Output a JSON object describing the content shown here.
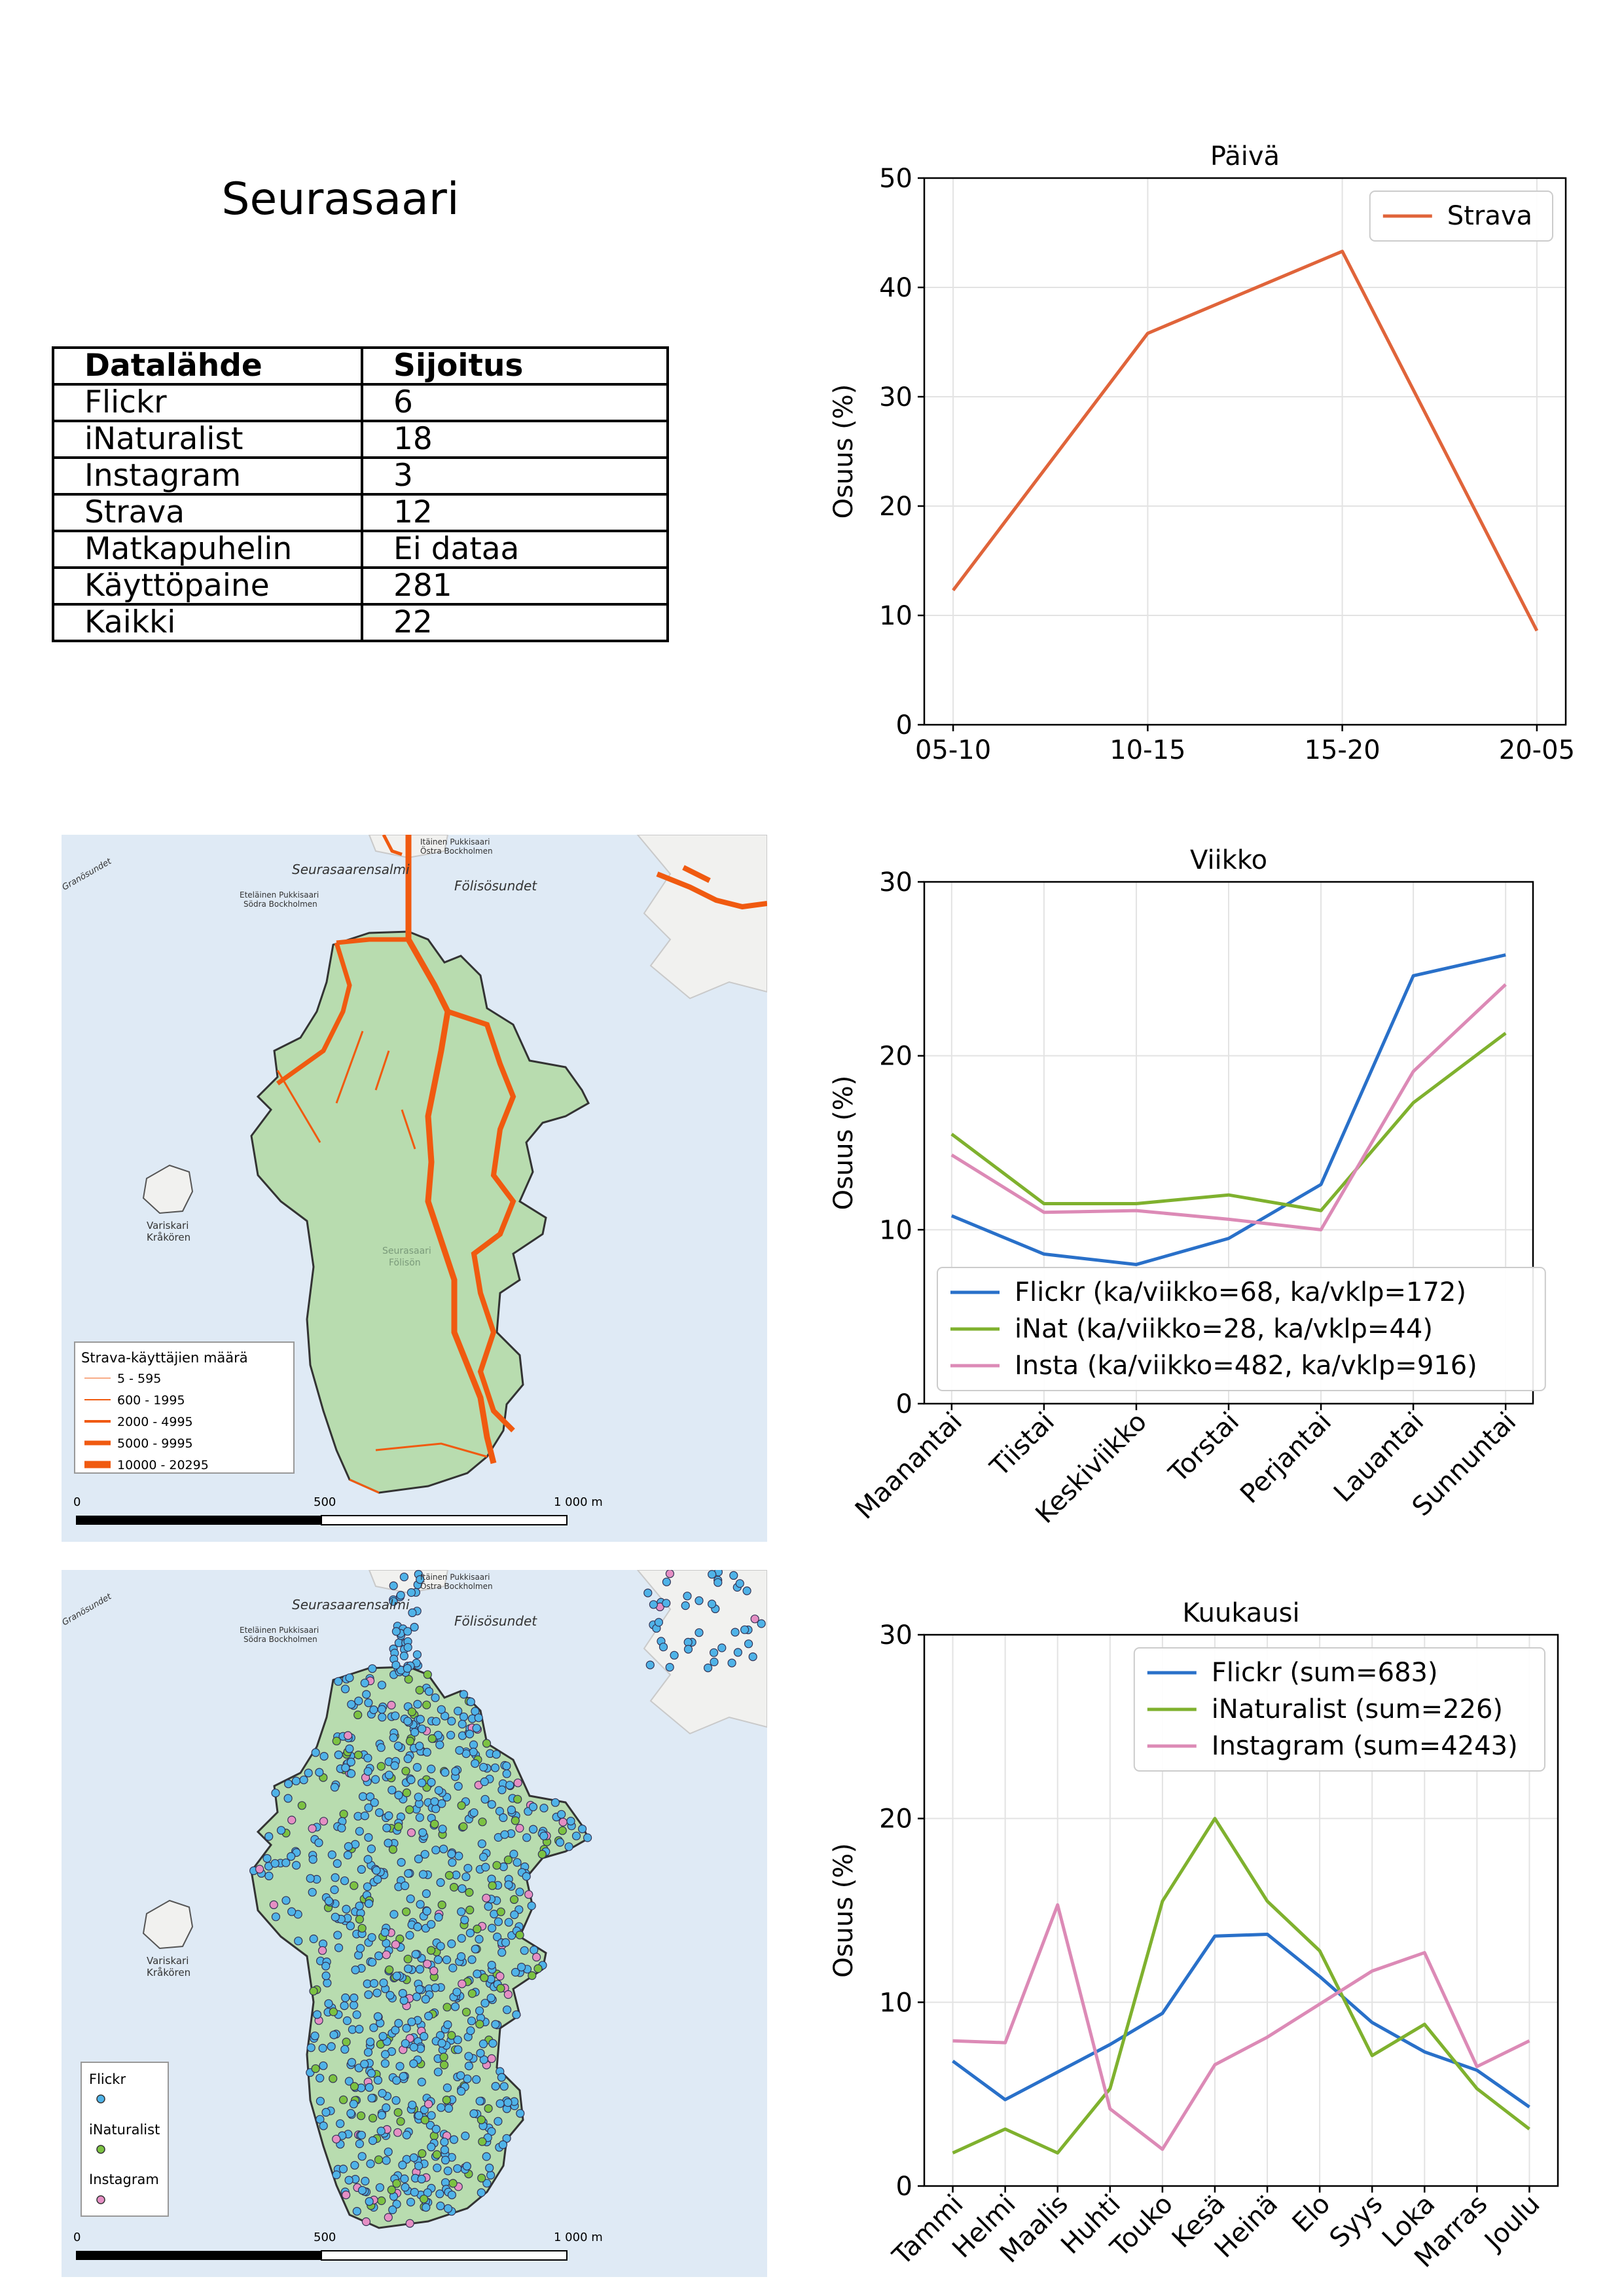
{
  "page_title": "Seurasaari",
  "ranking_table": {
    "headers": [
      "Datalähde",
      "Sijoitus"
    ],
    "rows": [
      [
        "Flickr",
        "6"
      ],
      [
        "iNaturalist",
        "18"
      ],
      [
        "Instagram",
        "3"
      ],
      [
        "Strava",
        "12"
      ],
      [
        "Matkapuhelin",
        "Ei dataa"
      ],
      [
        "Käyttöpaine",
        "281"
      ],
      [
        "Kaikki",
        "22"
      ]
    ]
  },
  "maps": {
    "strava": {
      "legend_title": "Strava-käyttäjien määrä",
      "legend_items": [
        "5 - 595",
        "600 - 1995",
        "2000 - 4995",
        "5000 - 9995",
        "10000 - 20295"
      ],
      "route_color": "#f05a10",
      "scale_labels": [
        "0",
        "500",
        "1 000 m"
      ]
    },
    "points": {
      "legend_items": [
        "Flickr",
        "iNaturalist",
        "Instagram"
      ],
      "colors": [
        "#4fb3e8",
        "#7cc242",
        "#e58fc4"
      ],
      "scale_labels": [
        "0",
        "500",
        "1 000 m"
      ]
    },
    "place_labels": [
      "Seurasaarensalmi",
      "Fölisösundet",
      "Itäinen Pukkisaari",
      "Östra Bockholmen",
      "Eteläinen Pukkisaari",
      "Södra Bockholmen",
      "Variskari",
      "Kråkören",
      "Granösundet",
      "Seurasaari",
      "Fölisön"
    ]
  },
  "chart_data": [
    {
      "type": "line",
      "title": "Päivä",
      "ylabel": "Osuus (%)",
      "xlabel": "",
      "categories": [
        "05-10",
        "10-15",
        "15-20",
        "20-05"
      ],
      "ylim": [
        0,
        50
      ],
      "yticks": [
        0,
        10,
        20,
        30,
        40,
        50
      ],
      "grid": true,
      "legend": "top-right",
      "series": [
        {
          "name": "Strava",
          "color": "#e0643a",
          "values": [
            12.3,
            35.8,
            43.3,
            8.6
          ]
        }
      ]
    },
    {
      "type": "line",
      "title": "Viikko",
      "ylabel": "Osuus (%)",
      "xlabel": "",
      "categories": [
        "Maanantai",
        "Tiistai",
        "Keskiviikko",
        "Torstai",
        "Perjantai",
        "Lauantai",
        "Sunnuntai"
      ],
      "ylim": [
        0,
        30
      ],
      "yticks": [
        0,
        10,
        20,
        30
      ],
      "grid": true,
      "legend": "lower-left",
      "series": [
        {
          "name": "Flickr (ka/viikko=68, ka/vklp=172)",
          "color": "#2970c9",
          "values": [
            10.8,
            8.6,
            8.0,
            9.5,
            12.6,
            24.6,
            25.8
          ]
        },
        {
          "name": "iNat (ka/viikko=28, ka/vklp=44)",
          "color": "#7fb12e",
          "values": [
            15.5,
            11.5,
            11.5,
            12.0,
            11.1,
            17.3,
            21.3
          ]
        },
        {
          "name": "Insta (ka/viikko=482, ka/vklp=916)",
          "color": "#dc8ab6",
          "values": [
            14.3,
            11.0,
            11.1,
            10.6,
            10.0,
            19.1,
            24.1
          ]
        }
      ]
    },
    {
      "type": "line",
      "title": "Kuukausi",
      "ylabel": "Osuus (%)",
      "xlabel": "",
      "categories": [
        "Tammi",
        "Helmi",
        "Maalis",
        "Huhti",
        "Touko",
        "Kesä",
        "Heinä",
        "Elo",
        "Syys",
        "Loka",
        "Marras",
        "Joulu"
      ],
      "ylim": [
        0,
        30
      ],
      "yticks": [
        0,
        10,
        20,
        30
      ],
      "grid": true,
      "legend": "top-right",
      "series": [
        {
          "name": "Flickr (sum=683)",
          "color": "#2970c9",
          "values": [
            6.8,
            4.7,
            6.2,
            7.7,
            9.4,
            13.6,
            13.7,
            11.4,
            8.9,
            7.3,
            6.3,
            4.3
          ]
        },
        {
          "name": "iNaturalist (sum=226)",
          "color": "#7fb12e",
          "values": [
            1.8,
            3.1,
            1.8,
            5.3,
            15.5,
            20.0,
            15.5,
            12.8,
            7.1,
            8.8,
            5.3,
            3.1
          ]
        },
        {
          "name": "Instagram (sum=4243)",
          "color": "#dc8ab6",
          "values": [
            7.9,
            7.8,
            15.3,
            4.2,
            2.0,
            6.6,
            8.1,
            9.9,
            11.7,
            12.7,
            6.5,
            7.9
          ]
        }
      ]
    }
  ]
}
